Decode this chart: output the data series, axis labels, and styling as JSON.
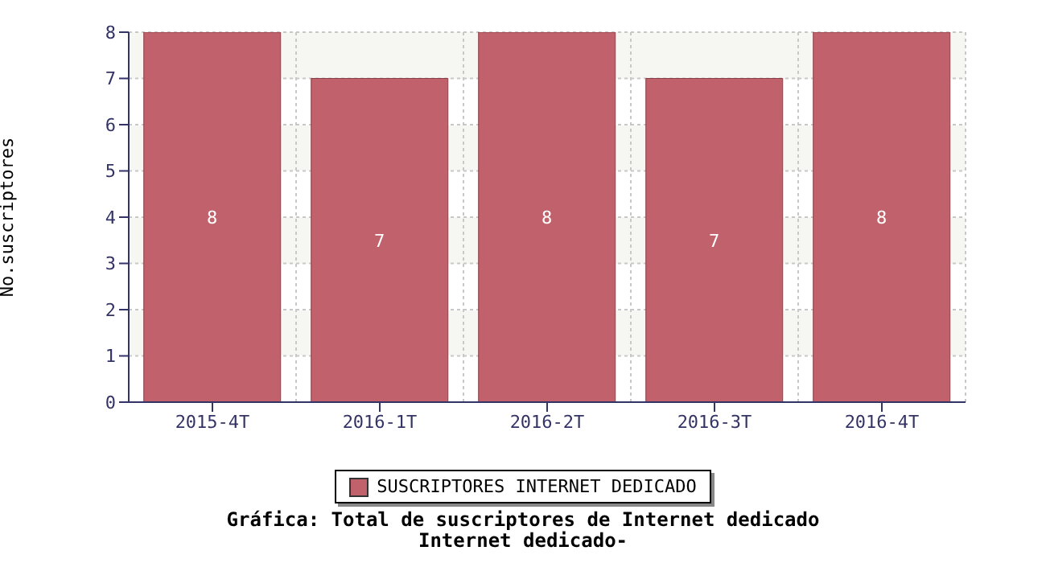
{
  "chart_data": {
    "type": "bar",
    "title": "Gráfica: Total de suscriptores de Internet dedicado",
    "subtitle": "Internet dedicado-",
    "ylabel": "No.suscriptores",
    "categories": [
      "2015-4T",
      "2016-1T",
      "2016-2T",
      "2016-3T",
      "2016-4T"
    ],
    "series": [
      {
        "name": "SUSCRIPTORES INTERNET DEDICADO",
        "color": "#c0616b",
        "values": [
          8,
          7,
          8,
          7,
          8
        ]
      }
    ],
    "ylim": [
      0,
      8
    ],
    "yticks": [
      0,
      1,
      2,
      3,
      4,
      5,
      6,
      7,
      8
    ],
    "grid": true,
    "legend": "bottom",
    "data_labels": true
  }
}
